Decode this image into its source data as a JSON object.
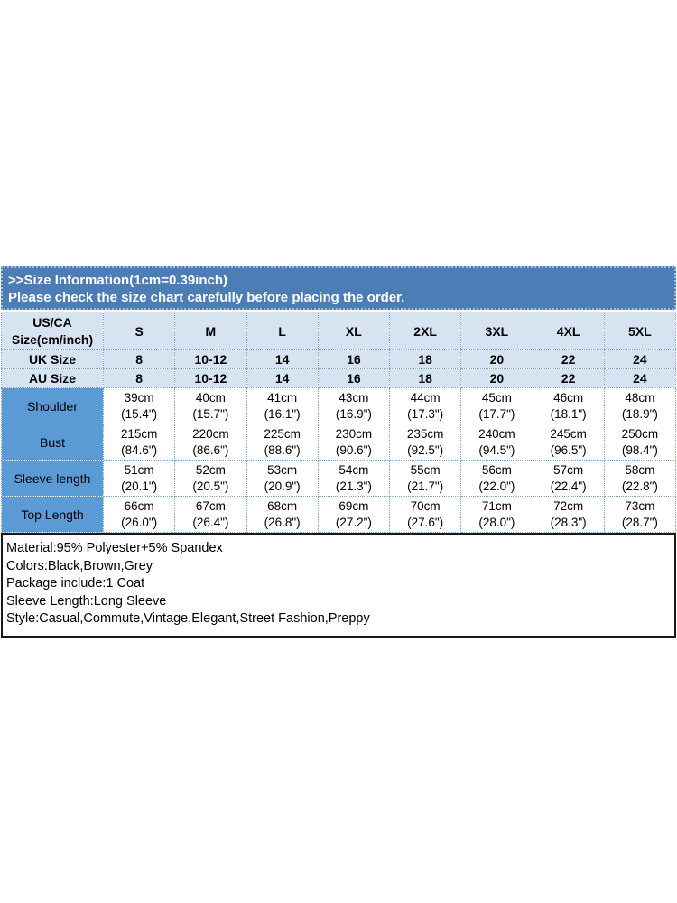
{
  "banner": {
    "line1": ">>Size Information(1cm=0.39inch)",
    "line2": "Please check the size chart carefully before placing the order.",
    "bg_color": "#4C7DB5",
    "text_color": "#FFFFFF"
  },
  "size_table": {
    "corner_header": [
      "US/CA",
      "Size(cm/inch)"
    ],
    "size_labels": [
      "S",
      "M",
      "L",
      "XL",
      "2XL",
      "3XL",
      "4XL",
      "5XL"
    ],
    "region_rows": [
      {
        "label": "UK Size",
        "values": [
          "8",
          "10-12",
          "14",
          "16",
          "18",
          "20",
          "22",
          "24"
        ]
      },
      {
        "label": "AU Size",
        "values": [
          "8",
          "10-12",
          "14",
          "16",
          "18",
          "20",
          "22",
          "24"
        ]
      }
    ],
    "measurement_rows": [
      {
        "label": "Shoulder",
        "cells": [
          [
            "39cm",
            "(15.4\")"
          ],
          [
            "40cm",
            "(15.7\")"
          ],
          [
            "41cm",
            "(16.1\")"
          ],
          [
            "43cm",
            "(16.9\")"
          ],
          [
            "44cm",
            "(17.3\")"
          ],
          [
            "45cm",
            "(17.7\")"
          ],
          [
            "46cm",
            "(18.1\")"
          ],
          [
            "48cm",
            "(18.9\")"
          ]
        ]
      },
      {
        "label": "Bust",
        "cells": [
          [
            "215cm",
            "(84.6\")"
          ],
          [
            "220cm",
            "(86.6\")"
          ],
          [
            "225cm",
            "(88.6\")"
          ],
          [
            "230cm",
            "(90.6\")"
          ],
          [
            "235cm",
            "(92.5\")"
          ],
          [
            "240cm",
            "(94.5\")"
          ],
          [
            "245cm",
            "(96.5\")"
          ],
          [
            "250cm",
            "(98.4\")"
          ]
        ]
      },
      {
        "label": "Sleeve length",
        "cells": [
          [
            "51cm",
            "(20.1\")"
          ],
          [
            "52cm",
            "(20.5\")"
          ],
          [
            "53cm",
            "(20.9\")"
          ],
          [
            "54cm",
            "(21.3\")"
          ],
          [
            "55cm",
            "(21.7\")"
          ],
          [
            "56cm",
            "(22.0\")"
          ],
          [
            "57cm",
            "(22.4\")"
          ],
          [
            "58cm",
            "(22.8\")"
          ]
        ]
      },
      {
        "label": "Top Length",
        "cells": [
          [
            "66cm",
            "(26.0\")"
          ],
          [
            "67cm",
            "(26.4\")"
          ],
          [
            "68cm",
            "(26.8\")"
          ],
          [
            "69cm",
            "(27.2\")"
          ],
          [
            "70cm",
            "(27.6\")"
          ],
          [
            "71cm",
            "(28.0\")"
          ],
          [
            "72cm",
            "(28.3\")"
          ],
          [
            "73cm",
            "(28.7\")"
          ]
        ]
      }
    ],
    "colors": {
      "header_bg": "#D6E4F2",
      "label_bg": "#5B9BD5",
      "grid_border": "#7AA5D3",
      "banner_bg": "#4C7DB5"
    }
  },
  "details": {
    "lines": [
      "Material:95% Polyester+5% Spandex",
      "Colors:Black,Brown,Grey",
      "Package include:1 Coat",
      "Sleeve Length:Long Sleeve",
      "Style:Casual,Commute,Vintage,Elegant,Street Fashion,Preppy"
    ]
  }
}
